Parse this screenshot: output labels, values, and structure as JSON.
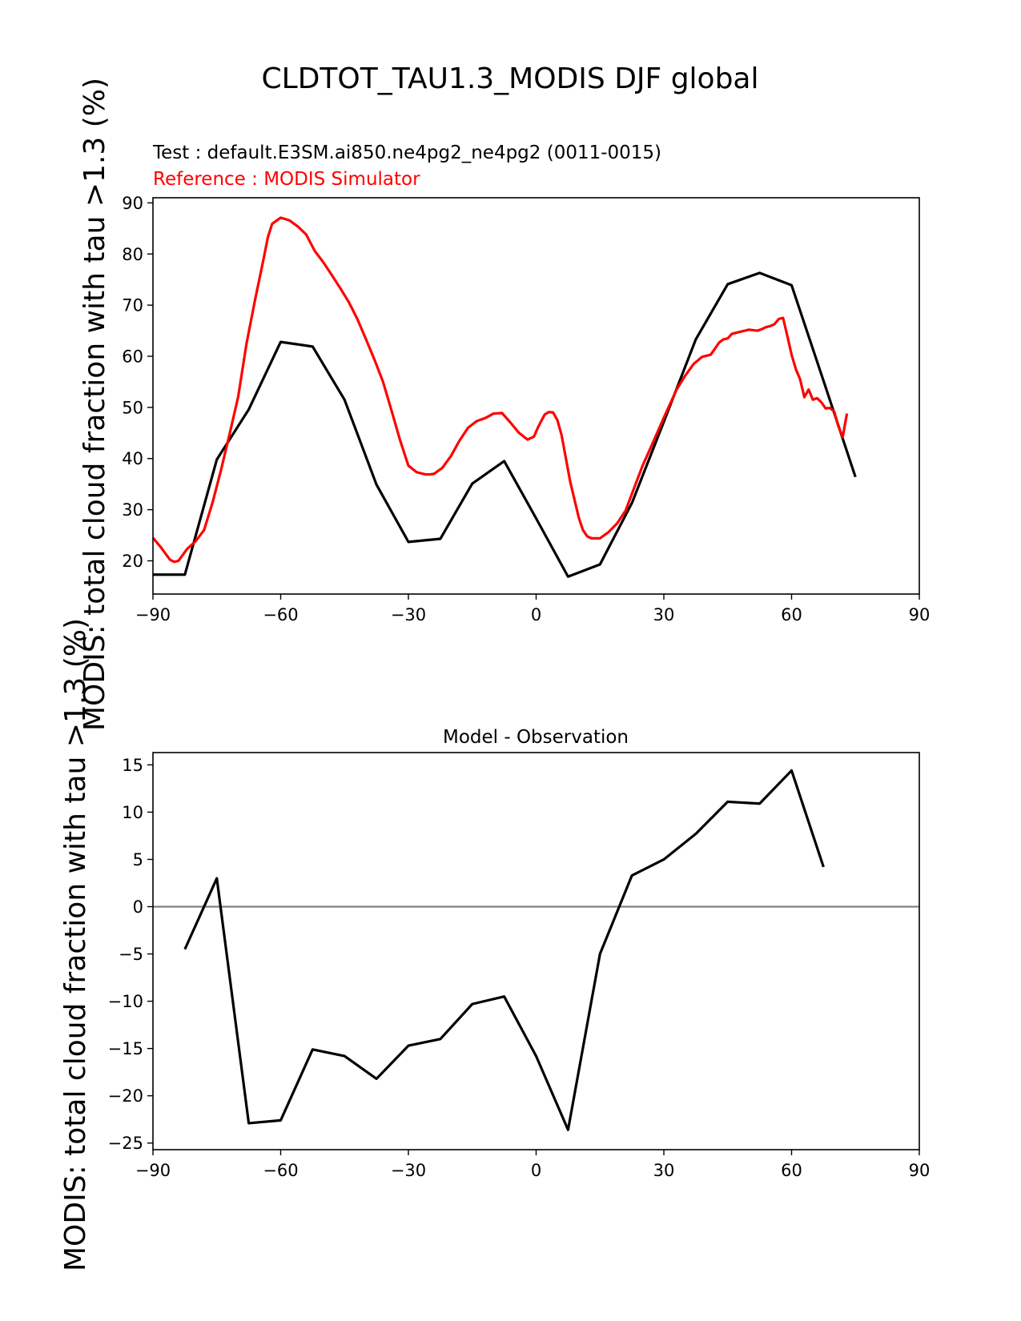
{
  "colors": {
    "test": "#000000",
    "reference": "#ff0000",
    "zero_line": "#808080"
  },
  "figure": {
    "title": "CLDTOT_TAU1.3_MODIS DJF global"
  },
  "chart_data": [
    {
      "type": "line",
      "test_label": "Test : default.E3SM.ai850.ne4pg2_ne4pg2 (0011-0015)",
      "reference_label": "Reference : MODIS Simulator",
      "ylabel": "MODIS: total cloud fraction with tau >1.3 (%)",
      "xlim": [
        -90,
        90
      ],
      "ylim": [
        13.5,
        91
      ],
      "xticks": [
        -90,
        -60,
        -30,
        0,
        30,
        60,
        90
      ],
      "xtick_labels": [
        "−90",
        "−60",
        "−30",
        "0",
        "30",
        "60",
        "90"
      ],
      "yticks": [
        20,
        30,
        40,
        50,
        60,
        70,
        80,
        90
      ],
      "ytick_labels": [
        "20",
        "30",
        "40",
        "50",
        "60",
        "70",
        "80",
        "90"
      ],
      "series": [
        {
          "name": "Test",
          "color": "#000000",
          "x": [
            -90,
            -82.5,
            -75,
            -67.5,
            -60,
            -52.5,
            -45,
            -37.5,
            -30,
            -22.5,
            -15,
            -7.5,
            0,
            7.5,
            15,
            22.5,
            30,
            37.5,
            45,
            52.5,
            60,
            67.5,
            75
          ],
          "y": [
            17.3,
            17.3,
            39.8,
            49.6,
            62.8,
            61.9,
            51.5,
            34.9,
            23.7,
            24.3,
            35.1,
            39.5,
            28.3,
            16.9,
            19.3,
            31.3,
            47.2,
            63.3,
            74.1,
            76.3,
            73.9,
            55.2,
            36.4
          ]
        },
        {
          "name": "Reference",
          "color": "#ff0000",
          "x": [
            -90,
            -88,
            -86,
            -85,
            -84,
            -82,
            -80,
            -78,
            -76,
            -74,
            -72,
            -70,
            -68,
            -66,
            -65,
            -64,
            -63,
            -62,
            -60,
            -58,
            -56,
            -54,
            -52,
            -50,
            -48,
            -46,
            -44,
            -42,
            -40,
            -38,
            -36,
            -34,
            -32,
            -30,
            -28,
            -26,
            -25,
            -24,
            -22,
            -20,
            -18,
            -16,
            -14,
            -12,
            -10,
            -8,
            -6,
            -4,
            -2,
            -0.5,
            0.5,
            2,
            3,
            4,
            5,
            6,
            7,
            8,
            10,
            11,
            12,
            13,
            15,
            17,
            19,
            21,
            23,
            25,
            27,
            30,
            33,
            35,
            37,
            39,
            41,
            43,
            44,
            45,
            46,
            48,
            50,
            52,
            53,
            54,
            55,
            56,
            57,
            58,
            59,
            60,
            61,
            62,
            63,
            64,
            65,
            66,
            67,
            68,
            69,
            70,
            71,
            72,
            73
          ],
          "y": [
            24.5,
            22.5,
            20.2,
            19.8,
            20.0,
            22.3,
            23.8,
            26.0,
            31.4,
            37.8,
            44.8,
            52.0,
            62.6,
            71.1,
            75.1,
            79.1,
            83.3,
            85.9,
            87.1,
            86.6,
            85.4,
            83.8,
            80.6,
            78.4,
            75.9,
            73.3,
            70.6,
            67.3,
            63.4,
            59.4,
            55.1,
            49.5,
            43.7,
            38.6,
            37.3,
            36.9,
            36.9,
            37.0,
            38.2,
            40.5,
            43.5,
            46.0,
            47.3,
            47.9,
            48.8,
            48.9,
            47.0,
            45.0,
            43.7,
            44.3,
            46.2,
            48.6,
            49.1,
            49.0,
            47.5,
            44.5,
            40.0,
            35.5,
            28.5,
            26.0,
            24.8,
            24.4,
            24.4,
            25.6,
            27.3,
            29.8,
            34.2,
            38.6,
            42.3,
            48.0,
            53.5,
            56.2,
            58.5,
            59.9,
            60.3,
            62.7,
            63.3,
            63.5,
            64.4,
            64.8,
            65.2,
            65.0,
            65.3,
            65.7,
            65.9,
            66.3,
            67.3,
            67.5,
            64.0,
            60.3,
            57.5,
            55.5,
            52.0,
            53.5,
            51.5,
            51.8,
            51.0,
            49.8,
            49.9,
            49.2,
            46.3,
            44.2,
            48.8
          ]
        }
      ]
    },
    {
      "type": "line",
      "title": "Model - Observation",
      "ylabel": "MODIS: total cloud fraction with tau >1.3 (%)",
      "xlim": [
        -90,
        90
      ],
      "ylim": [
        -25.7,
        16.3
      ],
      "xticks": [
        -90,
        -60,
        -30,
        0,
        30,
        60,
        90
      ],
      "xtick_labels": [
        "−90",
        "−60",
        "−30",
        "0",
        "30",
        "60",
        "90"
      ],
      "yticks": [
        -25,
        -20,
        -15,
        -10,
        -5,
        0,
        5,
        10,
        15
      ],
      "ytick_labels": [
        "−25",
        "−20",
        "−15",
        "−10",
        "−5",
        "0",
        "5",
        "10",
        "15"
      ],
      "zero_line": true,
      "series": [
        {
          "name": "Model - Observation",
          "color": "#000000",
          "x": [
            -82.5,
            -75,
            -67.5,
            -60,
            -52.5,
            -45,
            -37.5,
            -30,
            -22.5,
            -15,
            -7.5,
            0,
            7.5,
            15,
            22.5,
            30,
            37.5,
            45,
            52.5,
            60,
            67.5
          ],
          "y": [
            -4.5,
            3.0,
            -22.9,
            -22.6,
            -15.1,
            -15.8,
            -18.2,
            -14.7,
            -14.0,
            -10.3,
            -9.5,
            -15.8,
            -23.6,
            -5.0,
            3.3,
            5.0,
            7.7,
            11.1,
            10.9,
            14.4,
            4.2
          ]
        }
      ]
    }
  ]
}
